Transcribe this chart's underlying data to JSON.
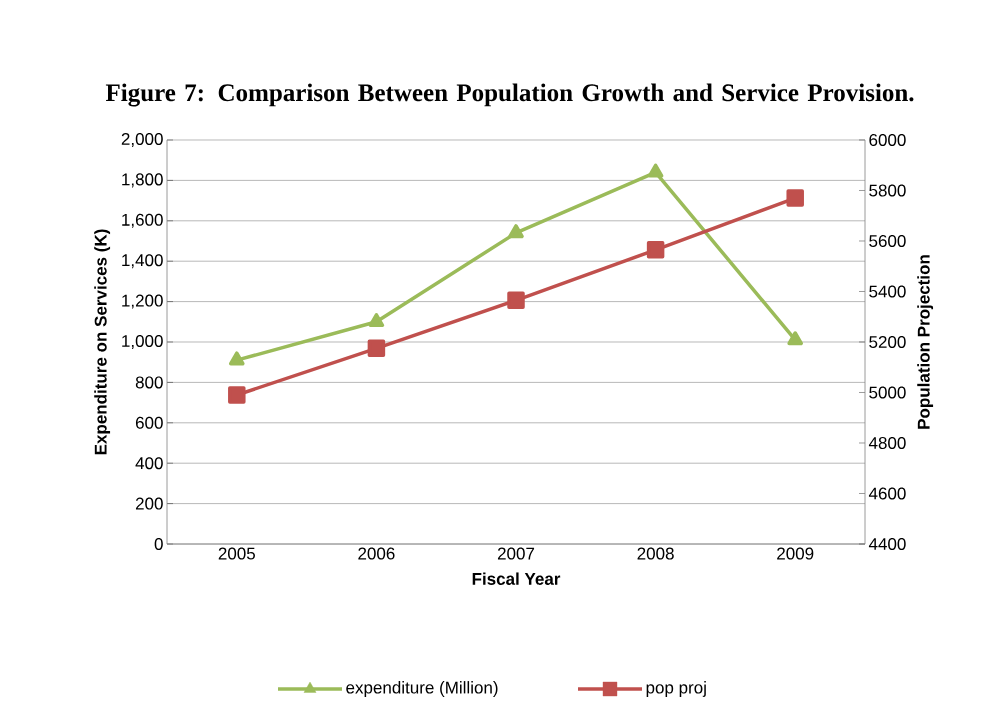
{
  "chart_data": {
    "type": "line",
    "title": "Figure 7: Comparison Between Population Growth  and Service Provision.",
    "xlabel": "Fiscal Year",
    "ylabel": "Expenditure on Services (K)",
    "y2label": "Population Projection",
    "categories": [
      "2005",
      "2006",
      "2007",
      "2008",
      "2009"
    ],
    "series": [
      {
        "name": "expenditure (Million)",
        "color": "#9bbb59",
        "marker": "triangle",
        "values": [
          910,
          1100,
          1540,
          1840,
          1010
        ]
      },
      {
        "name": "pop proj",
        "color": "#c0504d",
        "marker": "square",
        "axis": "y2",
        "values": [
          4990,
          5175,
          5365,
          5565,
          5770
        ]
      }
    ],
    "ylim": [
      0,
      2000
    ],
    "yticks": [
      {
        "value": 0,
        "label": "0"
      },
      {
        "value": 200,
        "label": "200"
      },
      {
        "value": 400,
        "label": "400"
      },
      {
        "value": 600,
        "label": "600"
      },
      {
        "value": 800,
        "label": "800"
      },
      {
        "value": 1000,
        "label": "1,000"
      },
      {
        "value": 1200,
        "label": "1,200"
      },
      {
        "value": 1400,
        "label": "1,400"
      },
      {
        "value": 1600,
        "label": "1,600"
      },
      {
        "value": 1800,
        "label": "1,800"
      },
      {
        "value": 2000,
        "label": "2,000"
      }
    ],
    "y2lim": [
      4400,
      6000
    ],
    "y2ticks": [
      4400,
      4600,
      4800,
      5000,
      5200,
      5400,
      5600,
      5800,
      6000
    ],
    "grid": "y",
    "legend": "bottom"
  }
}
